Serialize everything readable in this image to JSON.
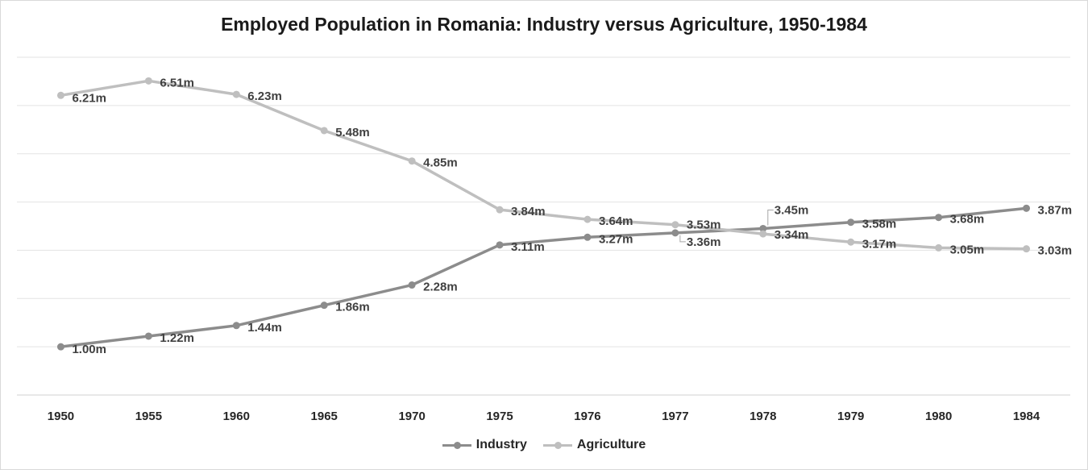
{
  "chart_data": {
    "type": "line",
    "title": "Employed Population in Romania: Industry versus Agriculture, 1950-1984",
    "categories": [
      "1950",
      "1955",
      "1960",
      "1965",
      "1970",
      "1975",
      "1976",
      "1977",
      "1978",
      "1979",
      "1980",
      "1984"
    ],
    "ylim": [
      0,
      7
    ],
    "y_gridline_step": 1,
    "y_axis_labels_shown": false,
    "grid": "horizontal",
    "legend_position": "bottom",
    "series": [
      {
        "name": "Industry",
        "color": "#8c8c8c",
        "values": [
          1.0,
          1.22,
          1.44,
          1.86,
          2.28,
          3.11,
          3.27,
          3.36,
          3.45,
          3.58,
          3.68,
          3.87
        ],
        "labels": [
          "1.00m",
          "1.22m",
          "1.44m",
          "1.86m",
          "2.28m",
          "3.11m",
          "3.27m",
          "3.36m",
          "3.45m",
          "3.58m",
          "3.68m",
          "3.87m"
        ]
      },
      {
        "name": "Agriculture",
        "color": "#bfbfbf",
        "values": [
          6.21,
          6.51,
          6.23,
          5.48,
          4.85,
          3.84,
          3.64,
          3.53,
          3.34,
          3.17,
          3.05,
          3.03
        ],
        "labels": [
          "6.21m",
          "6.51m",
          "6.23m",
          "5.48m",
          "4.85m",
          "3.84m",
          "3.64m",
          "3.53m",
          "3.34m",
          "3.17m",
          "3.05m",
          "3.03m"
        ]
      }
    ]
  }
}
